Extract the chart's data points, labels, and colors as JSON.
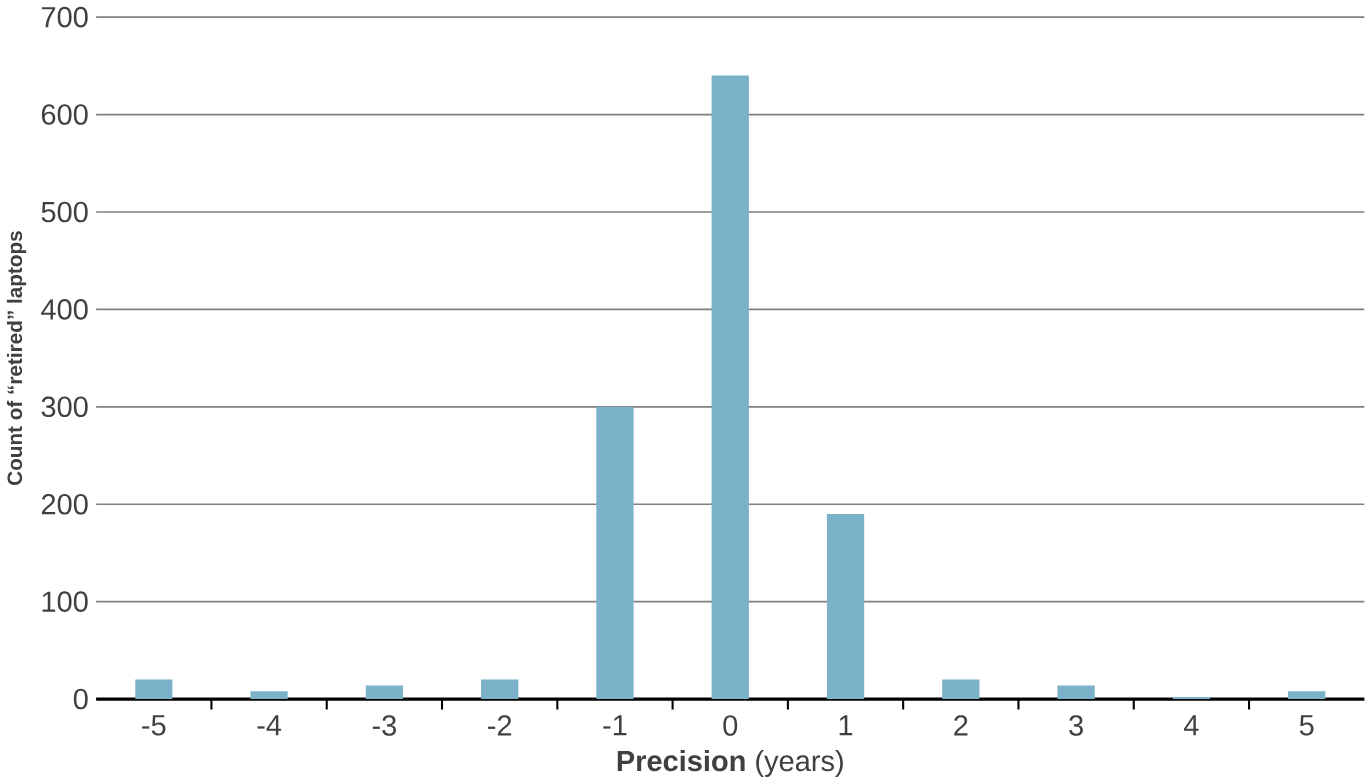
{
  "chart_data": {
    "type": "bar",
    "xlabel": "**Precision** (years)",
    "ylabel": "Count of “retired” laptops",
    "categories": [
      "-5",
      "-4",
      "-3",
      "-2",
      "-1",
      "0",
      "1",
      "2",
      "3",
      "4",
      "5"
    ],
    "values": [
      20,
      8,
      14,
      20,
      300,
      640,
      190,
      20,
      14,
      2,
      8
    ],
    "color": "#7bb1c9",
    "ylim": [
      0,
      700
    ],
    "yticks": [
      0,
      100,
      200,
      300,
      400,
      500,
      600,
      700
    ],
    "grid": "y"
  }
}
